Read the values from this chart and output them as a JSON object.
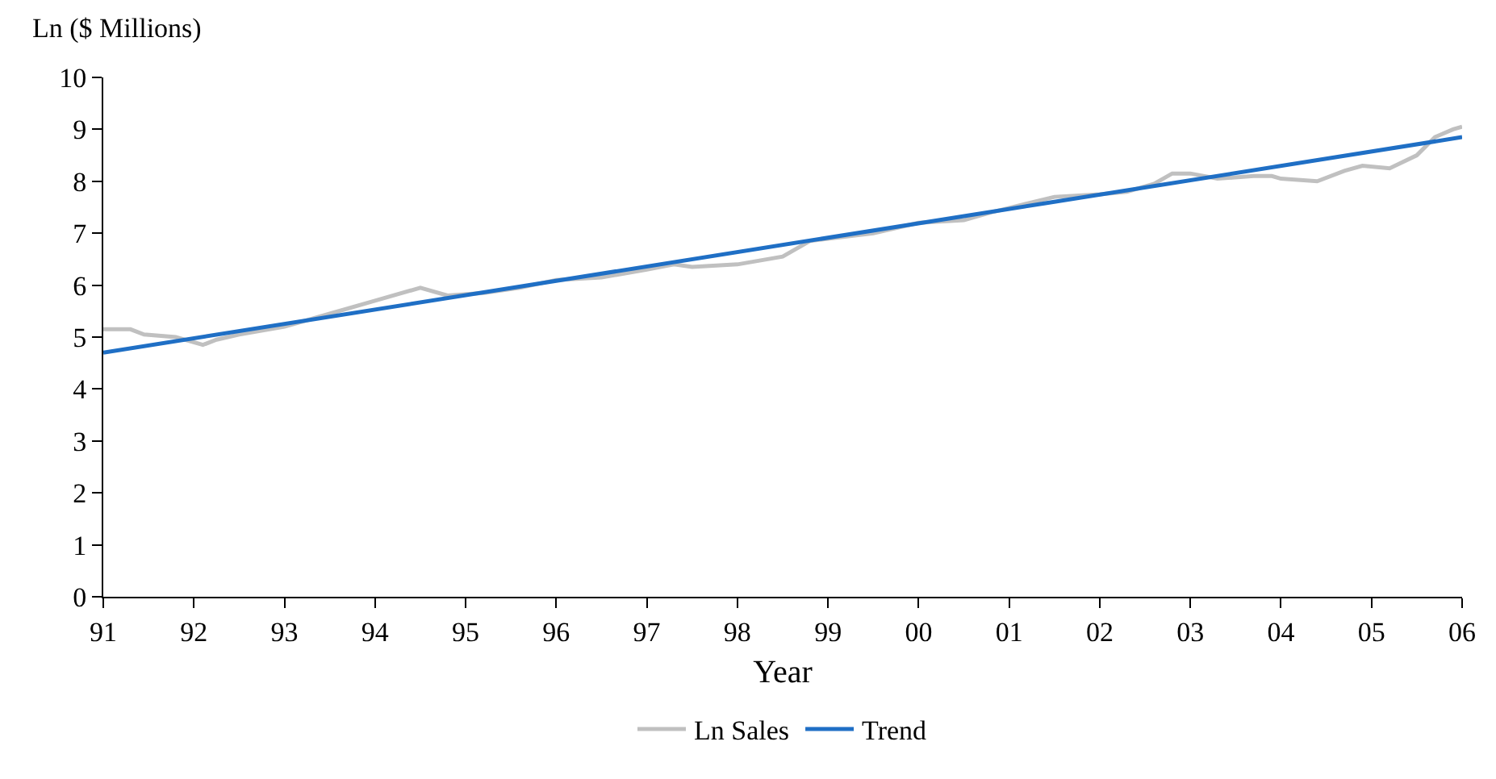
{
  "chart_data": {
    "type": "line",
    "ylabel": "Ln ($ Millions)",
    "xlabel": "Year",
    "xlim": [
      1991,
      2006
    ],
    "ylim": [
      0,
      10
    ],
    "xticks": [
      {
        "value": 1991,
        "label": "91"
      },
      {
        "value": 1992,
        "label": "92"
      },
      {
        "value": 1993,
        "label": "93"
      },
      {
        "value": 1994,
        "label": "94"
      },
      {
        "value": 1995,
        "label": "95"
      },
      {
        "value": 1996,
        "label": "96"
      },
      {
        "value": 1997,
        "label": "97"
      },
      {
        "value": 1998,
        "label": "98"
      },
      {
        "value": 1999,
        "label": "99"
      },
      {
        "value": 2000,
        "label": "00"
      },
      {
        "value": 2001,
        "label": "01"
      },
      {
        "value": 2002,
        "label": "02"
      },
      {
        "value": 2003,
        "label": "03"
      },
      {
        "value": 2004,
        "label": "04"
      },
      {
        "value": 2005,
        "label": "05"
      },
      {
        "value": 2006,
        "label": "06"
      }
    ],
    "yticks": [
      0,
      1,
      2,
      3,
      4,
      5,
      6,
      7,
      8,
      9,
      10
    ],
    "legend": "bottom",
    "marker": "none",
    "line_style": "solid",
    "series": [
      {
        "name": "Ln Sales",
        "color": "#c0c0c0",
        "x": [
          1991.0,
          1991.3,
          1991.45,
          1991.8,
          1992.1,
          1992.25,
          1992.5,
          1993.0,
          1993.5,
          1994.0,
          1994.5,
          1994.8,
          1995.2,
          1995.6,
          1996.0,
          1996.5,
          1997.0,
          1997.3,
          1997.5,
          1998.0,
          1998.5,
          1998.8,
          1999.5,
          2000.0,
          2000.5,
          2000.8,
          2001.5,
          2002.0,
          2002.3,
          2002.6,
          2002.8,
          2003.0,
          2003.3,
          2003.7,
          2003.9,
          2004.0,
          2004.4,
          2004.7,
          2004.9,
          2005.2,
          2005.5,
          2005.7,
          2005.9,
          2006.0
        ],
        "values": [
          5.15,
          5.15,
          5.05,
          5.0,
          4.85,
          4.95,
          5.05,
          5.2,
          5.45,
          5.7,
          5.95,
          5.8,
          5.85,
          5.95,
          6.1,
          6.15,
          6.3,
          6.4,
          6.35,
          6.4,
          6.55,
          6.85,
          7.0,
          7.2,
          7.25,
          7.4,
          7.7,
          7.75,
          7.8,
          7.95,
          8.15,
          8.15,
          8.05,
          8.1,
          8.1,
          8.05,
          8.0,
          8.2,
          8.3,
          8.25,
          8.5,
          8.85,
          9.0,
          9.05
        ]
      },
      {
        "name": "Trend",
        "color": "#1f6fc5",
        "x": [
          1991,
          2006
        ],
        "values": [
          4.7,
          8.85
        ]
      }
    ]
  }
}
